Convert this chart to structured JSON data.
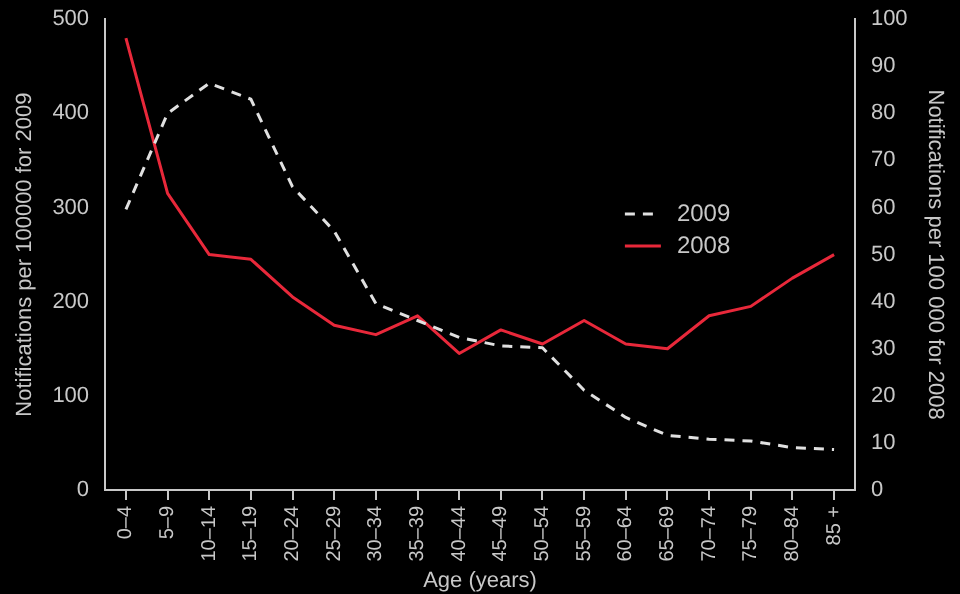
{
  "chart_data": {
    "type": "line",
    "xlabel": "Age (years)",
    "ylabel": "Notifications per 100000 for 2009",
    "y2label": "Notifications per 100 000 for 2008",
    "categories": [
      "0–4",
      "5–9",
      "10–14",
      "15–19",
      "20–24",
      "25–29",
      "30–34",
      "35–39",
      "40–44",
      "45–49",
      "50–54",
      "55–59",
      "60–64",
      "65–69",
      "70–74",
      "75–79",
      "80–84",
      "85 +"
    ],
    "series": [
      {
        "name": "2009",
        "color": "#e0e0e0",
        "line_style": "dashed",
        "values": [
          298,
          400,
          432,
          415,
          322,
          275,
          198,
          180,
          162,
          153,
          151,
          106,
          77,
          58,
          54,
          52,
          45,
          43
        ]
      },
      {
        "name": "2008",
        "color": "#e8283a",
        "line_style": "solid",
        "axis": "y2",
        "values": [
          96,
          63,
          50,
          49,
          41,
          35,
          33,
          37,
          29,
          34,
          31,
          36,
          31,
          30,
          37,
          39,
          45,
          50
        ]
      }
    ],
    "ylim": [
      0,
      500
    ],
    "yticks": [
      0,
      100,
      200,
      300,
      400,
      500
    ],
    "y2lim": [
      0,
      100
    ],
    "y2ticks": [
      0,
      10,
      20,
      30,
      40,
      50,
      60,
      70,
      80,
      90,
      100
    ],
    "grid": false,
    "legend": "right",
    "marker": "none"
  }
}
